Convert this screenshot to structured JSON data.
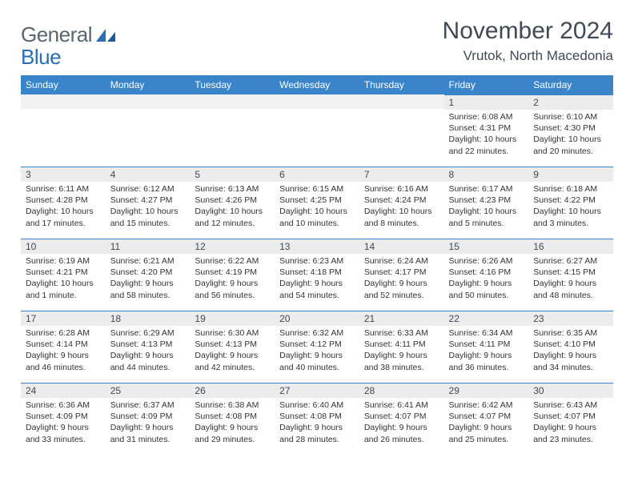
{
  "logo": {
    "word1": "General",
    "word2": "Blue"
  },
  "title": "November 2024",
  "location": "Vrutok, North Macedonia",
  "colors": {
    "header_bg": "#3a85c9",
    "header_text": "#ffffff",
    "daynum_bg": "#ececec",
    "divider": "#3a85c9",
    "logo_gray": "#5a6670",
    "logo_blue": "#2a6fb5",
    "body_text": "#333333"
  },
  "dayNames": [
    "Sunday",
    "Monday",
    "Tuesday",
    "Wednesday",
    "Thursday",
    "Friday",
    "Saturday"
  ],
  "weeks": [
    [
      {
        "n": "",
        "sunrise": "",
        "sunset": "",
        "daylight": ""
      },
      {
        "n": "",
        "sunrise": "",
        "sunset": "",
        "daylight": ""
      },
      {
        "n": "",
        "sunrise": "",
        "sunset": "",
        "daylight": ""
      },
      {
        "n": "",
        "sunrise": "",
        "sunset": "",
        "daylight": ""
      },
      {
        "n": "",
        "sunrise": "",
        "sunset": "",
        "daylight": ""
      },
      {
        "n": "1",
        "sunrise": "Sunrise: 6:08 AM",
        "sunset": "Sunset: 4:31 PM",
        "daylight": "Daylight: 10 hours and 22 minutes."
      },
      {
        "n": "2",
        "sunrise": "Sunrise: 6:10 AM",
        "sunset": "Sunset: 4:30 PM",
        "daylight": "Daylight: 10 hours and 20 minutes."
      }
    ],
    [
      {
        "n": "3",
        "sunrise": "Sunrise: 6:11 AM",
        "sunset": "Sunset: 4:28 PM",
        "daylight": "Daylight: 10 hours and 17 minutes."
      },
      {
        "n": "4",
        "sunrise": "Sunrise: 6:12 AM",
        "sunset": "Sunset: 4:27 PM",
        "daylight": "Daylight: 10 hours and 15 minutes."
      },
      {
        "n": "5",
        "sunrise": "Sunrise: 6:13 AM",
        "sunset": "Sunset: 4:26 PM",
        "daylight": "Daylight: 10 hours and 12 minutes."
      },
      {
        "n": "6",
        "sunrise": "Sunrise: 6:15 AM",
        "sunset": "Sunset: 4:25 PM",
        "daylight": "Daylight: 10 hours and 10 minutes."
      },
      {
        "n": "7",
        "sunrise": "Sunrise: 6:16 AM",
        "sunset": "Sunset: 4:24 PM",
        "daylight": "Daylight: 10 hours and 8 minutes."
      },
      {
        "n": "8",
        "sunrise": "Sunrise: 6:17 AM",
        "sunset": "Sunset: 4:23 PM",
        "daylight": "Daylight: 10 hours and 5 minutes."
      },
      {
        "n": "9",
        "sunrise": "Sunrise: 6:18 AM",
        "sunset": "Sunset: 4:22 PM",
        "daylight": "Daylight: 10 hours and 3 minutes."
      }
    ],
    [
      {
        "n": "10",
        "sunrise": "Sunrise: 6:19 AM",
        "sunset": "Sunset: 4:21 PM",
        "daylight": "Daylight: 10 hours and 1 minute."
      },
      {
        "n": "11",
        "sunrise": "Sunrise: 6:21 AM",
        "sunset": "Sunset: 4:20 PM",
        "daylight": "Daylight: 9 hours and 58 minutes."
      },
      {
        "n": "12",
        "sunrise": "Sunrise: 6:22 AM",
        "sunset": "Sunset: 4:19 PM",
        "daylight": "Daylight: 9 hours and 56 minutes."
      },
      {
        "n": "13",
        "sunrise": "Sunrise: 6:23 AM",
        "sunset": "Sunset: 4:18 PM",
        "daylight": "Daylight: 9 hours and 54 minutes."
      },
      {
        "n": "14",
        "sunrise": "Sunrise: 6:24 AM",
        "sunset": "Sunset: 4:17 PM",
        "daylight": "Daylight: 9 hours and 52 minutes."
      },
      {
        "n": "15",
        "sunrise": "Sunrise: 6:26 AM",
        "sunset": "Sunset: 4:16 PM",
        "daylight": "Daylight: 9 hours and 50 minutes."
      },
      {
        "n": "16",
        "sunrise": "Sunrise: 6:27 AM",
        "sunset": "Sunset: 4:15 PM",
        "daylight": "Daylight: 9 hours and 48 minutes."
      }
    ],
    [
      {
        "n": "17",
        "sunrise": "Sunrise: 6:28 AM",
        "sunset": "Sunset: 4:14 PM",
        "daylight": "Daylight: 9 hours and 46 minutes."
      },
      {
        "n": "18",
        "sunrise": "Sunrise: 6:29 AM",
        "sunset": "Sunset: 4:13 PM",
        "daylight": "Daylight: 9 hours and 44 minutes."
      },
      {
        "n": "19",
        "sunrise": "Sunrise: 6:30 AM",
        "sunset": "Sunset: 4:13 PM",
        "daylight": "Daylight: 9 hours and 42 minutes."
      },
      {
        "n": "20",
        "sunrise": "Sunrise: 6:32 AM",
        "sunset": "Sunset: 4:12 PM",
        "daylight": "Daylight: 9 hours and 40 minutes."
      },
      {
        "n": "21",
        "sunrise": "Sunrise: 6:33 AM",
        "sunset": "Sunset: 4:11 PM",
        "daylight": "Daylight: 9 hours and 38 minutes."
      },
      {
        "n": "22",
        "sunrise": "Sunrise: 6:34 AM",
        "sunset": "Sunset: 4:11 PM",
        "daylight": "Daylight: 9 hours and 36 minutes."
      },
      {
        "n": "23",
        "sunrise": "Sunrise: 6:35 AM",
        "sunset": "Sunset: 4:10 PM",
        "daylight": "Daylight: 9 hours and 34 minutes."
      }
    ],
    [
      {
        "n": "24",
        "sunrise": "Sunrise: 6:36 AM",
        "sunset": "Sunset: 4:09 PM",
        "daylight": "Daylight: 9 hours and 33 minutes."
      },
      {
        "n": "25",
        "sunrise": "Sunrise: 6:37 AM",
        "sunset": "Sunset: 4:09 PM",
        "daylight": "Daylight: 9 hours and 31 minutes."
      },
      {
        "n": "26",
        "sunrise": "Sunrise: 6:38 AM",
        "sunset": "Sunset: 4:08 PM",
        "daylight": "Daylight: 9 hours and 29 minutes."
      },
      {
        "n": "27",
        "sunrise": "Sunrise: 6:40 AM",
        "sunset": "Sunset: 4:08 PM",
        "daylight": "Daylight: 9 hours and 28 minutes."
      },
      {
        "n": "28",
        "sunrise": "Sunrise: 6:41 AM",
        "sunset": "Sunset: 4:07 PM",
        "daylight": "Daylight: 9 hours and 26 minutes."
      },
      {
        "n": "29",
        "sunrise": "Sunrise: 6:42 AM",
        "sunset": "Sunset: 4:07 PM",
        "daylight": "Daylight: 9 hours and 25 minutes."
      },
      {
        "n": "30",
        "sunrise": "Sunrise: 6:43 AM",
        "sunset": "Sunset: 4:07 PM",
        "daylight": "Daylight: 9 hours and 23 minutes."
      }
    ]
  ]
}
